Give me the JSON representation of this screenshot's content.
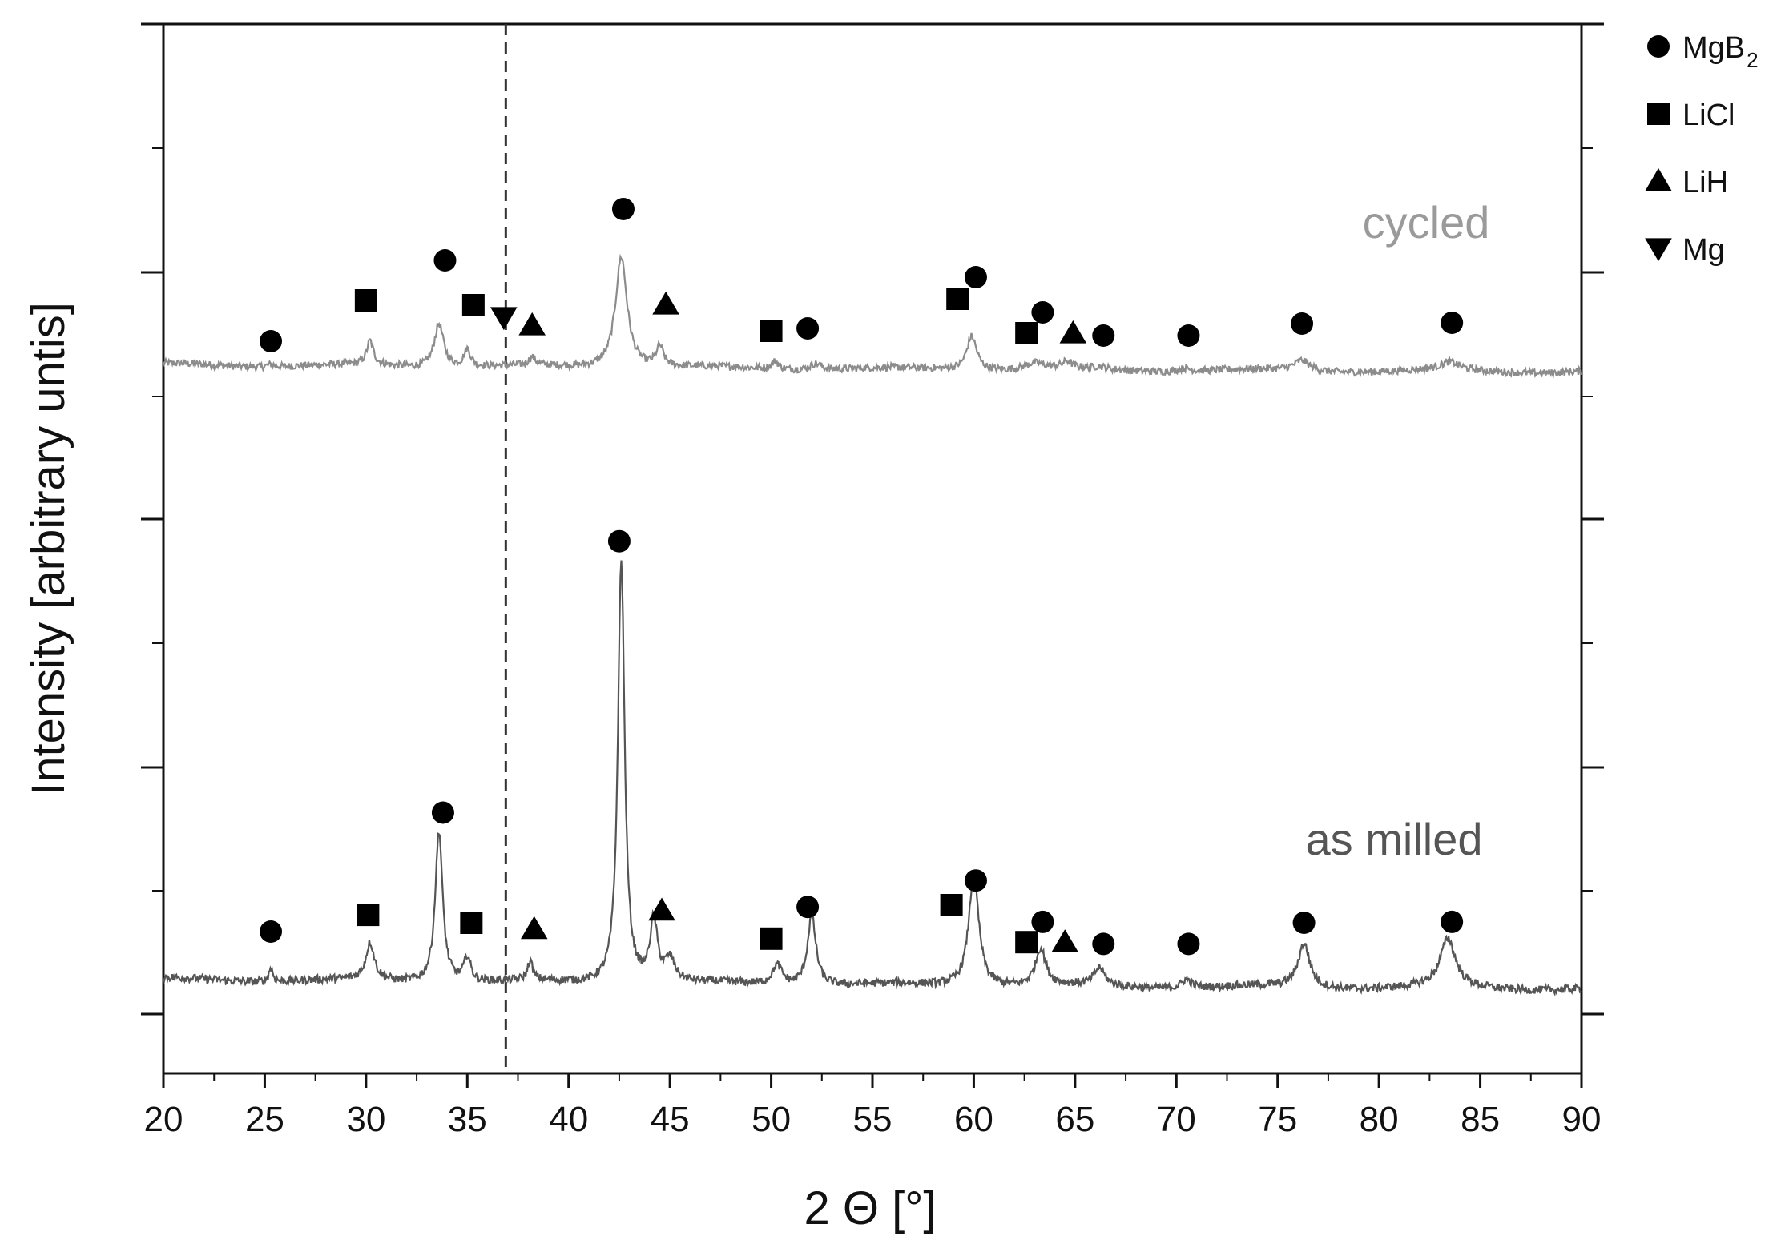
{
  "chart_data": {
    "type": "line",
    "title": "",
    "xlabel": "2 Θ [°]",
    "ylabel": "Intensity [arbitrary untis]",
    "xlim": [
      20,
      90
    ],
    "xticks": [
      "20",
      "25",
      "30",
      "35",
      "40",
      "45",
      "50",
      "55",
      "60",
      "65",
      "70",
      "75",
      "80",
      "85",
      "90"
    ],
    "yticks_labeled": false,
    "grid": false,
    "reference_line": {
      "x": 36.9,
      "style": "dashed"
    },
    "legend": {
      "position": "top-right",
      "entries": [
        {
          "marker": "circle",
          "label": "MgB",
          "subscript": "2"
        },
        {
          "marker": "square",
          "label": "LiCl",
          "subscript": ""
        },
        {
          "marker": "triangle-up",
          "label": "LiH",
          "subscript": ""
        },
        {
          "marker": "triangle-down",
          "label": "Mg",
          "subscript": ""
        }
      ]
    },
    "series": [
      {
        "name": "cycled",
        "label": "cycled",
        "color": "#8c8c8c",
        "baseline": 0.08,
        "peaks": [
          {
            "x": 25.3,
            "h": 0.03,
            "w": 0.2
          },
          {
            "x": 30.2,
            "h": 0.3,
            "w": 0.2
          },
          {
            "x": 33.6,
            "h": 0.55,
            "w": 0.28
          },
          {
            "x": 35.0,
            "h": 0.22,
            "w": 0.2
          },
          {
            "x": 38.2,
            "h": 0.1,
            "w": 0.2
          },
          {
            "x": 42.6,
            "h": 1.4,
            "w": 0.35
          },
          {
            "x": 44.5,
            "h": 0.25,
            "w": 0.22
          },
          {
            "x": 50.2,
            "h": 0.1,
            "w": 0.2
          },
          {
            "x": 52.2,
            "h": 0.08,
            "w": 0.35
          },
          {
            "x": 59.9,
            "h": 0.43,
            "w": 0.3
          },
          {
            "x": 63.0,
            "h": 0.08,
            "w": 0.6
          },
          {
            "x": 64.6,
            "h": 0.08,
            "w": 0.3
          },
          {
            "x": 66.2,
            "h": 0.03,
            "w": 0.3
          },
          {
            "x": 70.4,
            "h": 0.04,
            "w": 0.4
          },
          {
            "x": 76.2,
            "h": 0.13,
            "w": 0.45
          },
          {
            "x": 83.5,
            "h": 0.1,
            "w": 0.55
          }
        ],
        "markers": [
          {
            "x": 25.3,
            "y": 0.42,
            "shape": "circle"
          },
          {
            "x": 30.0,
            "y": 0.93,
            "shape": "square"
          },
          {
            "x": 33.9,
            "y": 1.43,
            "shape": "circle"
          },
          {
            "x": 35.3,
            "y": 0.87,
            "shape": "square"
          },
          {
            "x": 36.8,
            "y": 0.72,
            "shape": "triangle-down"
          },
          {
            "x": 38.2,
            "y": 0.62,
            "shape": "triangle-up"
          },
          {
            "x": 42.7,
            "y": 2.07,
            "shape": "circle"
          },
          {
            "x": 44.8,
            "y": 0.88,
            "shape": "triangle-up"
          },
          {
            "x": 50.0,
            "y": 0.55,
            "shape": "square"
          },
          {
            "x": 51.8,
            "y": 0.58,
            "shape": "circle"
          },
          {
            "x": 59.2,
            "y": 0.95,
            "shape": "square"
          },
          {
            "x": 60.1,
            "y": 1.22,
            "shape": "circle"
          },
          {
            "x": 63.4,
            "y": 0.78,
            "shape": "circle"
          },
          {
            "x": 62.6,
            "y": 0.52,
            "shape": "square"
          },
          {
            "x": 64.9,
            "y": 0.52,
            "shape": "triangle-up"
          },
          {
            "x": 66.4,
            "y": 0.49,
            "shape": "circle"
          },
          {
            "x": 70.6,
            "y": 0.49,
            "shape": "circle"
          },
          {
            "x": 76.2,
            "y": 0.64,
            "shape": "circle"
          },
          {
            "x": 83.6,
            "y": 0.65,
            "shape": "circle"
          }
        ]
      },
      {
        "name": "as milled",
        "label": "as milled",
        "color": "#555555",
        "baseline": 0.1,
        "peaks": [
          {
            "x": 25.3,
            "h": 0.16,
            "w": 0.12
          },
          {
            "x": 30.2,
            "h": 0.42,
            "w": 0.25
          },
          {
            "x": 33.6,
            "h": 1.73,
            "w": 0.22
          },
          {
            "x": 35.0,
            "h": 0.28,
            "w": 0.2
          },
          {
            "x": 38.1,
            "h": 0.22,
            "w": 0.15
          },
          {
            "x": 42.6,
            "h": 4.8,
            "w": 0.2
          },
          {
            "x": 44.2,
            "h": 0.7,
            "w": 0.22
          },
          {
            "x": 45.0,
            "h": 0.25,
            "w": 0.3
          },
          {
            "x": 50.3,
            "h": 0.22,
            "w": 0.3
          },
          {
            "x": 52.0,
            "h": 0.8,
            "w": 0.25
          },
          {
            "x": 60.0,
            "h": 1.28,
            "w": 0.3
          },
          {
            "x": 63.3,
            "h": 0.42,
            "w": 0.3
          },
          {
            "x": 66.2,
            "h": 0.2,
            "w": 0.3
          },
          {
            "x": 70.5,
            "h": 0.1,
            "w": 0.3
          },
          {
            "x": 76.3,
            "h": 0.5,
            "w": 0.35
          },
          {
            "x": 83.4,
            "h": 0.55,
            "w": 0.45
          }
        ],
        "markers": [
          {
            "x": 25.3,
            "y": 0.7,
            "shape": "circle"
          },
          {
            "x": 30.1,
            "y": 0.89,
            "shape": "square"
          },
          {
            "x": 33.8,
            "y": 2.05,
            "shape": "circle"
          },
          {
            "x": 35.2,
            "y": 0.8,
            "shape": "square"
          },
          {
            "x": 38.3,
            "y": 0.73,
            "shape": "triangle-up"
          },
          {
            "x": 42.5,
            "y": 5.13,
            "shape": "circle"
          },
          {
            "x": 44.6,
            "y": 0.94,
            "shape": "triangle-up"
          },
          {
            "x": 50.0,
            "y": 0.62,
            "shape": "square"
          },
          {
            "x": 51.8,
            "y": 0.98,
            "shape": "circle"
          },
          {
            "x": 58.9,
            "y": 1.0,
            "shape": "square"
          },
          {
            "x": 60.1,
            "y": 1.28,
            "shape": "circle"
          },
          {
            "x": 63.4,
            "y": 0.81,
            "shape": "circle"
          },
          {
            "x": 62.6,
            "y": 0.58,
            "shape": "square"
          },
          {
            "x": 64.5,
            "y": 0.58,
            "shape": "triangle-up"
          },
          {
            "x": 66.4,
            "y": 0.56,
            "shape": "circle"
          },
          {
            "x": 70.6,
            "y": 0.56,
            "shape": "circle"
          },
          {
            "x": 76.3,
            "y": 0.8,
            "shape": "circle"
          },
          {
            "x": 83.6,
            "y": 0.81,
            "shape": "circle"
          }
        ]
      }
    ]
  }
}
